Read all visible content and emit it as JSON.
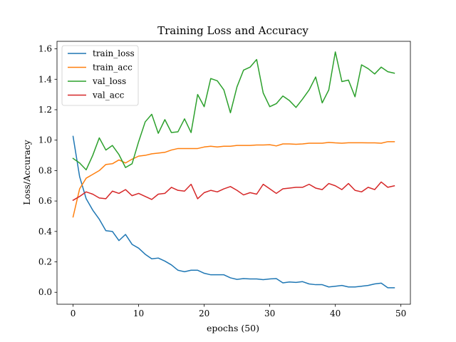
{
  "chart_data": {
    "type": "line",
    "title": "Training Loss and Accuracy",
    "xlabel": "epochs (50)",
    "ylabel": "Loss/Accuracy",
    "xlim": [
      -2.45,
      51.45
    ],
    "ylim": [
      -0.0785,
      1.6495
    ],
    "xticks": [
      0,
      10,
      20,
      30,
      40,
      50
    ],
    "yticks": [
      "0.0",
      "0.2",
      "0.4",
      "0.6",
      "0.8",
      "1.0",
      "1.2",
      "1.4",
      "1.6"
    ],
    "legend_position": "top-left",
    "grid": false,
    "x": [
      0,
      1,
      2,
      3,
      4,
      5,
      6,
      7,
      8,
      9,
      10,
      11,
      12,
      13,
      14,
      15,
      16,
      17,
      18,
      19,
      20,
      21,
      22,
      23,
      24,
      25,
      26,
      27,
      28,
      29,
      30,
      31,
      32,
      33,
      34,
      35,
      36,
      37,
      38,
      39,
      40,
      41,
      42,
      43,
      44,
      45,
      46,
      47,
      48,
      49
    ],
    "series": [
      {
        "name": "train_loss",
        "color": "#1f77b4",
        "values": [
          1.025,
          0.76,
          0.615,
          0.54,
          0.48,
          0.405,
          0.4,
          0.34,
          0.38,
          0.315,
          0.29,
          0.25,
          0.22,
          0.225,
          0.205,
          0.18,
          0.145,
          0.135,
          0.145,
          0.145,
          0.125,
          0.115,
          0.115,
          0.115,
          0.095,
          0.085,
          0.09,
          0.088,
          0.088,
          0.083,
          0.088,
          0.09,
          0.062,
          0.068,
          0.065,
          0.07,
          0.055,
          0.05,
          0.05,
          0.035,
          0.04,
          0.045,
          0.035,
          0.035,
          0.04,
          0.045,
          0.055,
          0.06,
          0.03,
          0.03
        ]
      },
      {
        "name": "train_acc",
        "color": "#ff7f0e",
        "values": [
          0.495,
          0.68,
          0.75,
          0.775,
          0.8,
          0.84,
          0.845,
          0.87,
          0.85,
          0.875,
          0.895,
          0.9,
          0.91,
          0.915,
          0.92,
          0.935,
          0.945,
          0.945,
          0.945,
          0.945,
          0.955,
          0.96,
          0.955,
          0.96,
          0.96,
          0.965,
          0.965,
          0.965,
          0.968,
          0.968,
          0.97,
          0.962,
          0.975,
          0.975,
          0.973,
          0.975,
          0.98,
          0.98,
          0.98,
          0.985,
          0.982,
          0.98,
          0.983,
          0.983,
          0.983,
          0.982,
          0.982,
          0.98,
          0.99,
          0.99
        ]
      },
      {
        "name": "val_loss",
        "color": "#2ca02c",
        "values": [
          0.88,
          0.85,
          0.805,
          0.9,
          1.015,
          0.935,
          0.965,
          0.905,
          0.82,
          0.845,
          0.99,
          1.12,
          1.17,
          1.045,
          1.135,
          1.05,
          1.055,
          1.14,
          1.05,
          1.3,
          1.22,
          1.405,
          1.39,
          1.33,
          1.18,
          1.35,
          1.46,
          1.48,
          1.53,
          1.31,
          1.22,
          1.24,
          1.29,
          1.26,
          1.215,
          1.27,
          1.33,
          1.415,
          1.245,
          1.33,
          1.58,
          1.385,
          1.395,
          1.285,
          1.495,
          1.47,
          1.435,
          1.48,
          1.45,
          1.44
        ]
      },
      {
        "name": "val_acc",
        "color": "#d62728",
        "values": [
          0.605,
          0.63,
          0.66,
          0.645,
          0.62,
          0.615,
          0.665,
          0.65,
          0.675,
          0.635,
          0.65,
          0.63,
          0.61,
          0.645,
          0.65,
          0.69,
          0.67,
          0.665,
          0.71,
          0.615,
          0.655,
          0.67,
          0.66,
          0.68,
          0.695,
          0.67,
          0.64,
          0.655,
          0.645,
          0.71,
          0.68,
          0.65,
          0.68,
          0.685,
          0.69,
          0.69,
          0.71,
          0.685,
          0.675,
          0.715,
          0.7,
          0.675,
          0.715,
          0.67,
          0.66,
          0.69,
          0.675,
          0.725,
          0.69,
          0.7
        ]
      }
    ]
  }
}
